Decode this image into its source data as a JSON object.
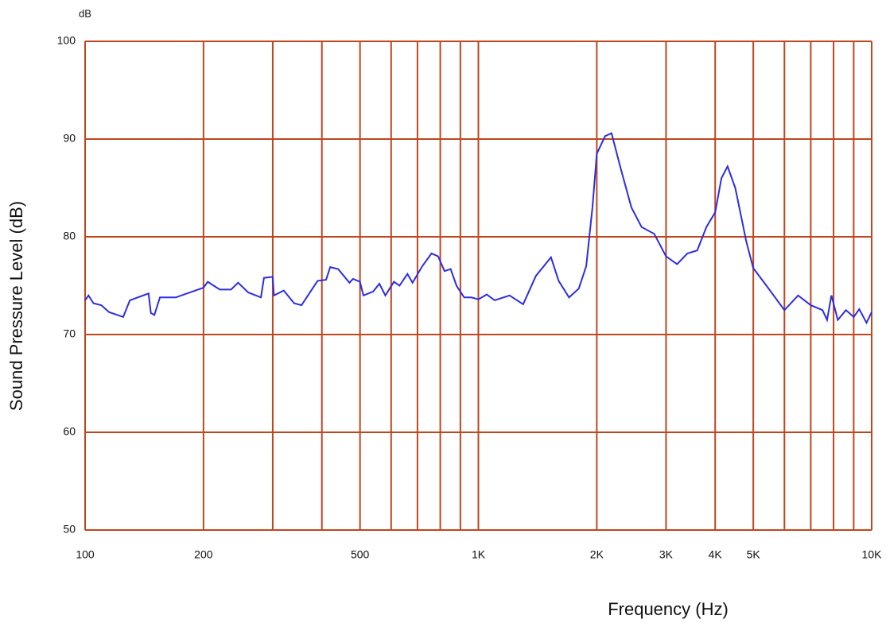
{
  "chart_data": {
    "type": "line",
    "x_scale": "log",
    "y_unit": "dB",
    "x_label": "Frequency (Hz)",
    "y_label": "Sound Pressure Level (dB)",
    "xlim": [
      100,
      10000
    ],
    "ylim": [
      50,
      100
    ],
    "xticks": [
      100,
      200,
      500,
      {
        "value": 1000,
        "label": "1K"
      },
      {
        "value": 2000,
        "label": "2K"
      },
      {
        "value": 3000,
        "label": "3K"
      },
      {
        "value": 4000,
        "label": "4K"
      },
      {
        "value": 5000,
        "label": "5K"
      },
      {
        "value": 10000,
        "label": "10K"
      }
    ],
    "x_minor_grid": [
      300,
      400,
      600,
      700,
      800,
      900,
      6000,
      7000,
      8000,
      9000
    ],
    "yticks": [
      50,
      60,
      70,
      80,
      90,
      100
    ],
    "grid": true,
    "grid_color": "#c0461e",
    "series": [
      {
        "color": "#2d2de0",
        "x": [
          100,
          102,
          105,
          110,
          115,
          125,
          130,
          145,
          147,
          150,
          155,
          170,
          200,
          205,
          220,
          235,
          245,
          260,
          280,
          285,
          300,
          302,
          320,
          340,
          355,
          390,
          410,
          420,
          440,
          470,
          480,
          500,
          510,
          540,
          560,
          580,
          610,
          630,
          660,
          680,
          720,
          760,
          790,
          820,
          850,
          880,
          920,
          960,
          1000,
          1050,
          1100,
          1200,
          1300,
          1400,
          1530,
          1600,
          1700,
          1800,
          1880,
          1950,
          2000,
          2100,
          2180,
          2300,
          2450,
          2600,
          2800,
          3000,
          3200,
          3400,
          3600,
          3800,
          4000,
          4150,
          4300,
          4500,
          4800,
          5000,
          5400,
          6000,
          6500,
          7000,
          7500,
          7700,
          7900,
          8200,
          8600,
          9000,
          9300,
          9700,
          10000
        ],
        "values": [
          73.5,
          74,
          73.2,
          73,
          72.3,
          71.8,
          73.5,
          74.2,
          72.2,
          72.0,
          73.8,
          73.8,
          74.8,
          75.4,
          74.6,
          74.6,
          75.3,
          74.3,
          73.8,
          75.8,
          75.9,
          74.0,
          74.5,
          73.2,
          73.0,
          75.5,
          75.6,
          76.9,
          76.7,
          75.3,
          75.7,
          75.4,
          74.0,
          74.4,
          75.2,
          74.0,
          75.4,
          75.0,
          76.2,
          75.3,
          77.0,
          78.3,
          78.0,
          76.5,
          76.7,
          75.0,
          73.8,
          73.8,
          73.6,
          74.1,
          73.5,
          74.0,
          73.1,
          76.0,
          77.9,
          75.5,
          73.8,
          74.7,
          77.0,
          83.0,
          88.5,
          90.3,
          90.6,
          87.0,
          83.0,
          81.0,
          80.3,
          78.0,
          77.2,
          78.3,
          78.6,
          81.0,
          82.5,
          86.0,
          87.2,
          85.0,
          79.5,
          76.8,
          75.0,
          72.5,
          74.0,
          73.0,
          72.5,
          71.5,
          74.0,
          71.5,
          72.5,
          71.8,
          72.6,
          71.2,
          72.3
        ]
      }
    ]
  }
}
